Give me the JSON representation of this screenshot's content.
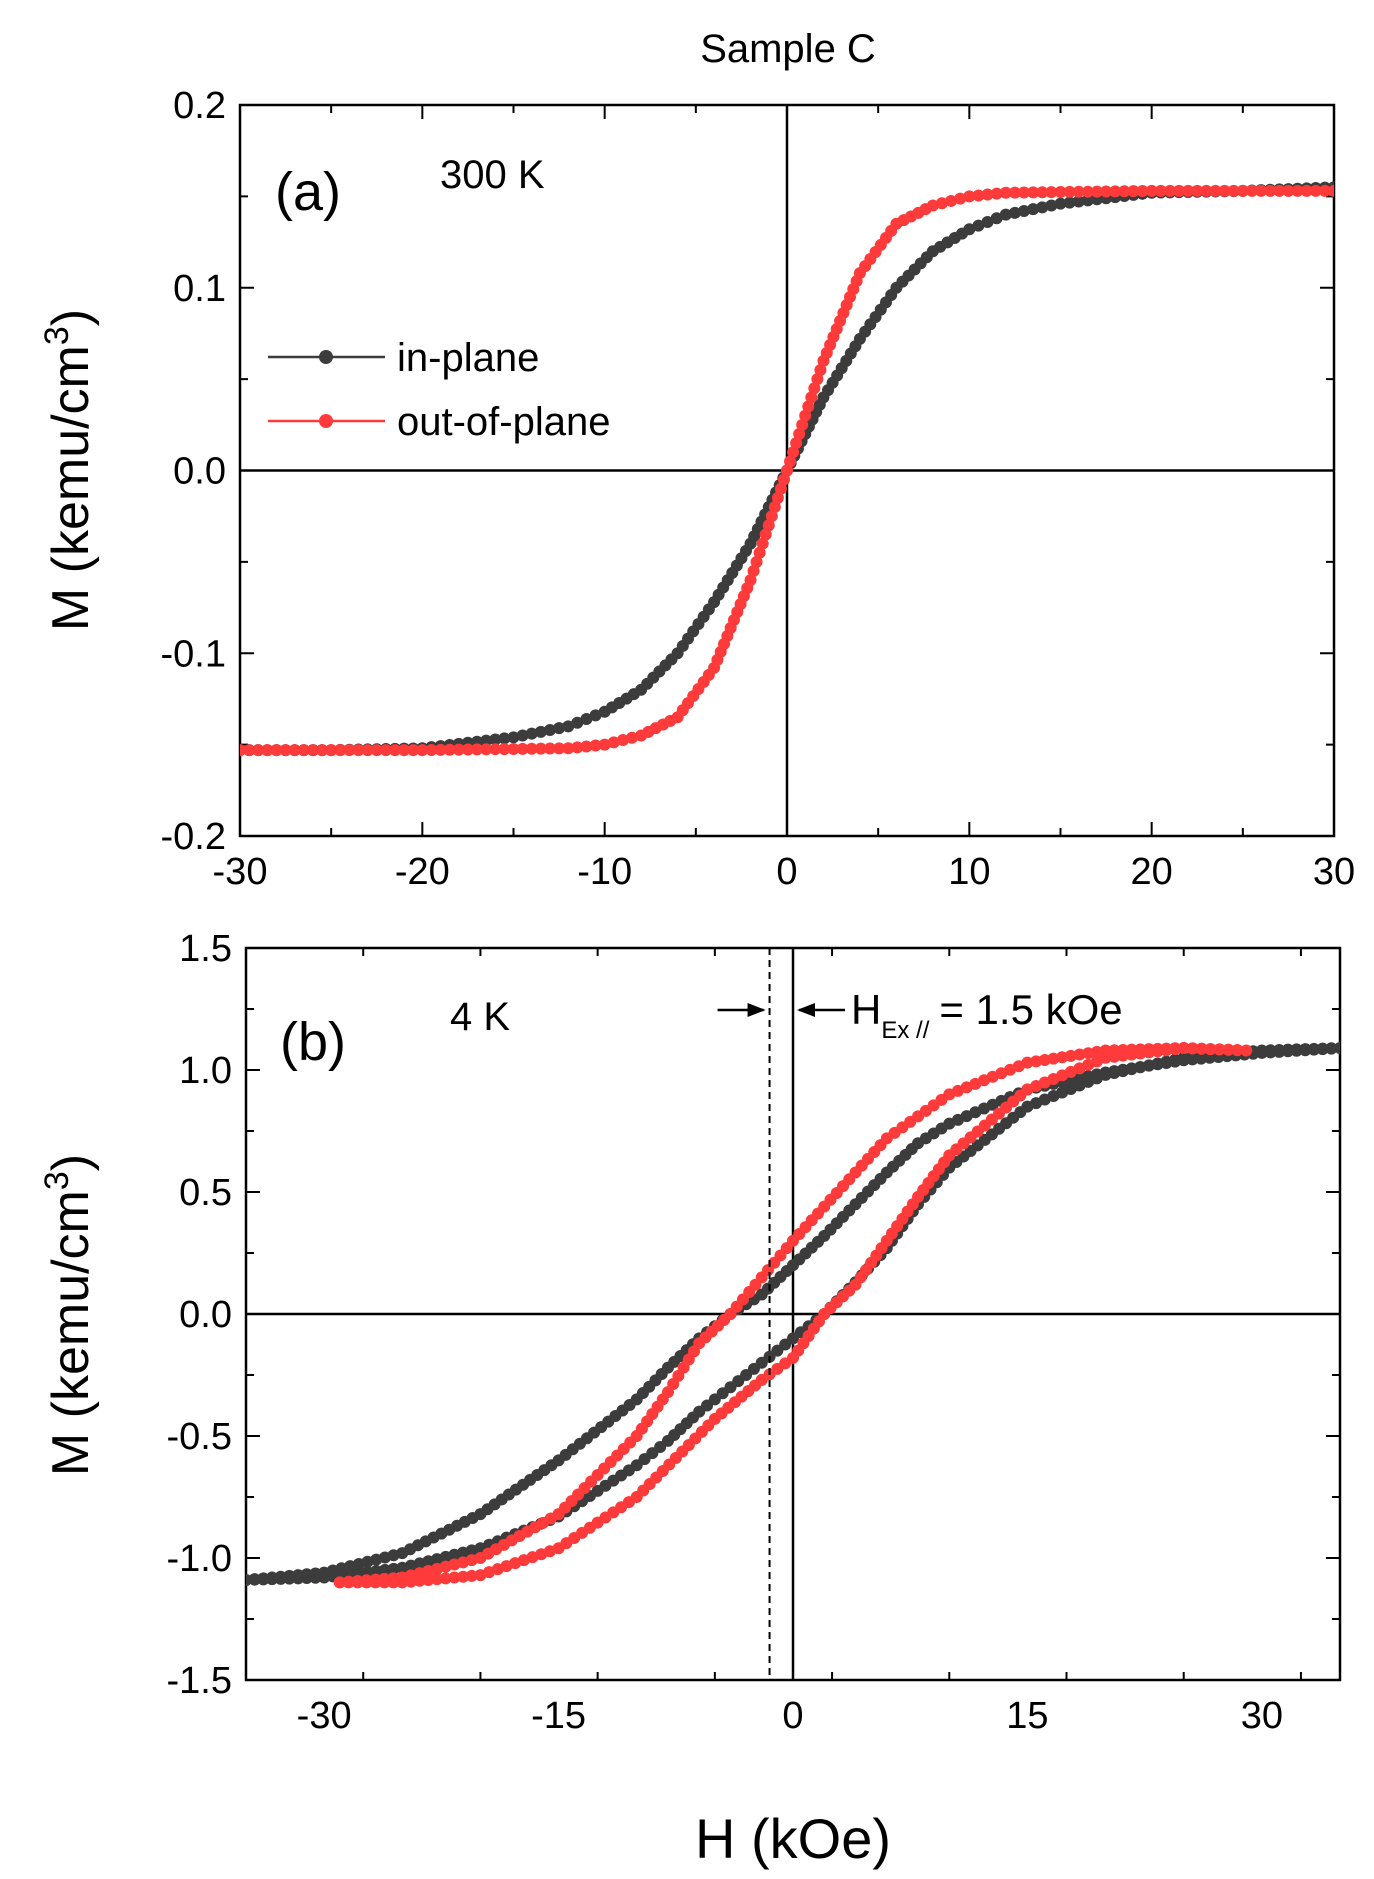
{
  "figure": {
    "title": "Sample C",
    "xlabel": "H (kOe)"
  },
  "chart_data": [
    {
      "type": "line",
      "panel_label": "(a)",
      "temperature_label": "300 K",
      "ylabel": "M (kemu/cm",
      "ylabel_sup": "3",
      "ylabel_tail": ")",
      "xlim": [
        -30,
        30
      ],
      "ylim": [
        -0.2,
        0.2
      ],
      "xticks": [
        -30,
        -20,
        -10,
        0,
        10,
        20,
        30
      ],
      "xtick_labels": [
        "-30",
        "-20",
        "-10",
        "0",
        "10",
        "20",
        "30"
      ],
      "yticks": [
        -0.2,
        -0.1,
        0.0,
        0.1,
        0.2
      ],
      "ytick_labels": [
        "-0.2",
        "-0.1",
        "0.0",
        "0.1",
        "0.2"
      ],
      "legend": [
        "in-plane",
        "out-of-plane"
      ],
      "legend_position": "center-left",
      "series": [
        {
          "name": "in-plane",
          "color": "#3c3c3c",
          "x": [
            -30,
            -25,
            -20,
            -15,
            -12,
            -10,
            -8,
            -6,
            -4,
            -2,
            -1,
            0,
            1,
            2,
            4,
            6,
            8,
            10,
            12,
            15,
            20,
            25,
            30
          ],
          "y": [
            -0.153,
            -0.153,
            -0.152,
            -0.146,
            -0.14,
            -0.132,
            -0.12,
            -0.1,
            -0.072,
            -0.04,
            -0.02,
            0.0,
            0.02,
            0.04,
            0.072,
            0.1,
            0.12,
            0.132,
            0.14,
            0.146,
            0.152,
            0.153,
            0.155
          ]
        },
        {
          "name": "out-of-plane",
          "color": "#ff3a3a",
          "x": [
            -30,
            -20,
            -12,
            -10,
            -8,
            -6,
            -4,
            -2,
            -1,
            0,
            1,
            2,
            4,
            6,
            8,
            10,
            12,
            20,
            30
          ],
          "y": [
            -0.153,
            -0.153,
            -0.152,
            -0.15,
            -0.145,
            -0.135,
            -0.108,
            -0.06,
            -0.03,
            0.0,
            0.03,
            0.06,
            0.108,
            0.135,
            0.145,
            0.15,
            0.152,
            0.153,
            0.153
          ]
        }
      ]
    },
    {
      "type": "line",
      "panel_label": "(b)",
      "temperature_label": "4 K",
      "ylabel": "M (kemu/cm",
      "ylabel_sup": "3",
      "ylabel_tail": ")",
      "xlim": [
        -35,
        35
      ],
      "ylim": [
        -1.5,
        1.5
      ],
      "xticks": [
        -30,
        -15,
        0,
        15,
        30
      ],
      "xtick_labels": [
        "-30",
        "-15",
        "0",
        "15",
        "30"
      ],
      "yticks": [
        -1.5,
        -1.0,
        -0.5,
        0.0,
        0.5,
        1.0,
        1.5
      ],
      "ytick_labels": [
        "-1.5",
        "-1.0",
        "-0.5",
        "0.0",
        "0.5",
        "1.0",
        "1.5"
      ],
      "annotation": {
        "text_main": "H",
        "text_sub": "Ex //",
        "text_value": "= 1.5 kOe",
        "dashed_line_x": -1.5
      },
      "series": [
        {
          "name": "in-plane",
          "color": "#3c3c3c",
          "x": [
            -35,
            -30,
            -25,
            -20,
            -15,
            -10,
            -8,
            -6,
            -4,
            -2,
            0,
            2,
            4,
            6,
            8,
            10,
            15,
            20,
            25,
            30,
            35,
            30,
            25,
            20,
            15,
            10,
            8,
            6,
            4,
            2,
            0,
            -2,
            -4,
            -6,
            -8,
            -10,
            -15,
            -20,
            -25,
            -30,
            -35
          ],
          "y": [
            -1.09,
            -1.08,
            -1.04,
            -0.96,
            -0.83,
            -0.62,
            -0.52,
            -0.4,
            -0.3,
            -0.2,
            -0.1,
            0.0,
            0.13,
            0.27,
            0.45,
            0.6,
            0.85,
            0.98,
            1.05,
            1.08,
            1.09,
            1.07,
            1.04,
            0.99,
            0.92,
            0.78,
            0.7,
            0.58,
            0.45,
            0.32,
            0.2,
            0.08,
            0.0,
            -0.1,
            -0.22,
            -0.35,
            -0.6,
            -0.82,
            -0.98,
            -1.06,
            -1.09
          ]
        },
        {
          "name": "out-of-plane",
          "color": "#ff3a3a",
          "x": [
            -29,
            -25,
            -20,
            -15,
            -10,
            -5,
            -2,
            0,
            2,
            4,
            6,
            8,
            10,
            15,
            20,
            25,
            29,
            25,
            20,
            15,
            10,
            6,
            4,
            2,
            0,
            -2,
            -4,
            -6,
            -8,
            -10,
            -15,
            -20,
            -25,
            -29
          ],
          "y": [
            -1.1,
            -1.1,
            -1.07,
            -0.96,
            -0.75,
            -0.43,
            -0.27,
            -0.18,
            0.0,
            0.12,
            0.3,
            0.48,
            0.65,
            0.92,
            1.05,
            1.09,
            1.08,
            1.09,
            1.08,
            1.03,
            0.9,
            0.72,
            0.58,
            0.44,
            0.3,
            0.15,
            0.0,
            -0.12,
            -0.32,
            -0.5,
            -0.82,
            -1.0,
            -1.08,
            -1.1
          ]
        }
      ]
    }
  ]
}
